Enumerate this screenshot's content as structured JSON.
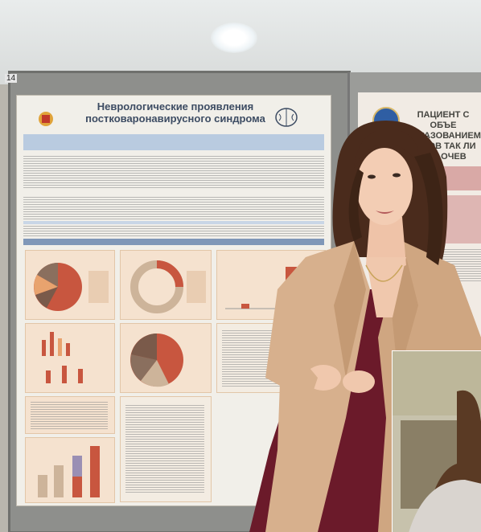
{
  "board": {
    "number": "14"
  },
  "poster": {
    "title_line1": "Неврологические проявления",
    "title_line2": "постковаронавирусного синдрома"
  },
  "right_poster": {
    "title": "ПАЦИЕНТ С ОБЪЕ ОБРАЗОВАНИЕМ ГОЛОВ ТАК ЛИ ВСЕ ОЧЕВ"
  },
  "colors": {
    "accent": "#3d4c63",
    "poster_bg": "#f1efe9",
    "dress": "#6b1a2a",
    "blazer": "#d7b08d"
  }
}
